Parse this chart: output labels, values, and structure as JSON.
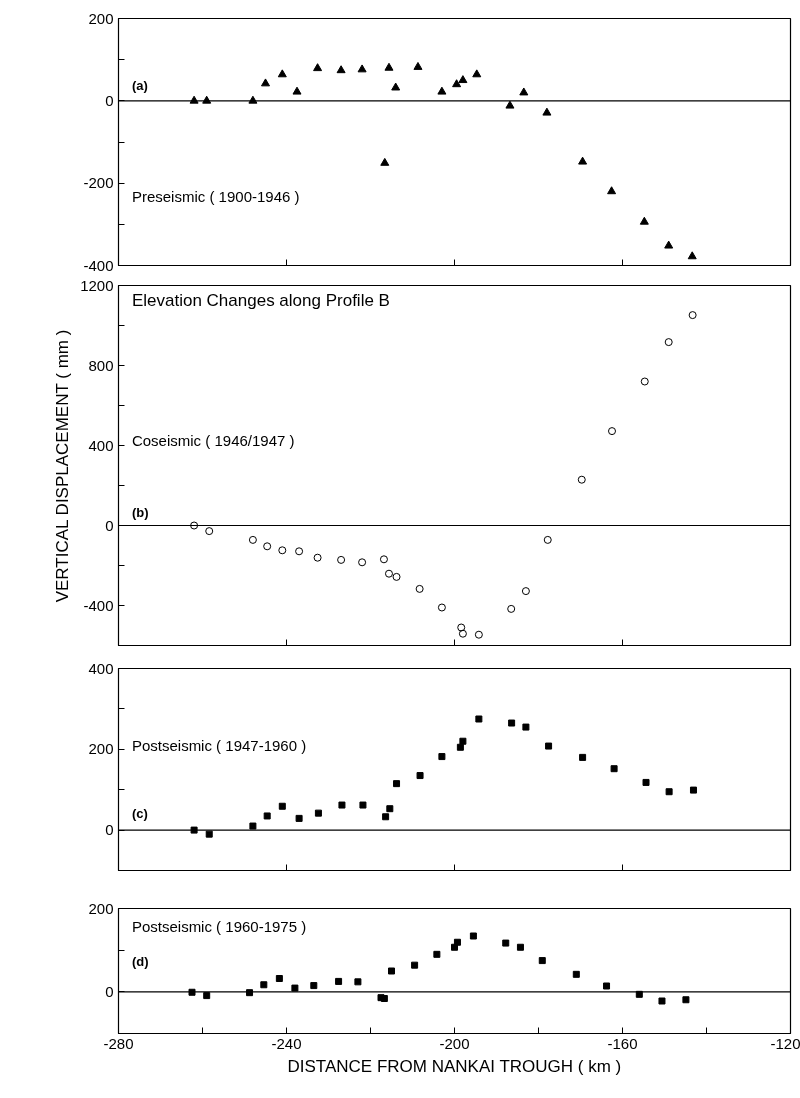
{
  "chart_data": [
    {
      "type": "scatter",
      "marker": "triangle",
      "annotations": [
        "(a)",
        "Preseismic ( 1900-1946 )"
      ],
      "x": [
        -262,
        -259,
        -248,
        -245,
        -241,
        -237.5,
        -232.6,
        -227,
        -222,
        -215.6,
        -216.6,
        -214,
        -208.7,
        -203,
        -199.5,
        -198,
        -194.7,
        -186.8,
        -183.5,
        -178,
        -169.5,
        -162.6,
        -154.8,
        -149,
        -143.4
      ],
      "series": [
        {
          "color": "#000000",
          "values": [
            0,
            0,
            0,
            42,
            64,
            22,
            79,
            74,
            76,
            80,
            -151,
            32,
            82,
            22,
            40,
            50,
            64,
            -12,
            20,
            -29,
            -148,
            -220,
            -294,
            -352,
            -378
          ]
        }
      ],
      "xlim": [
        -280,
        -120
      ],
      "xticks": [
        {
          "value": -280,
          "label": null
        },
        {
          "value": -240,
          "label": null
        },
        {
          "value": -200,
          "label": null
        },
        {
          "value": -160,
          "label": null
        },
        {
          "value": -120,
          "label": null
        }
      ],
      "ylim": [
        -400,
        200
      ],
      "yticks": [
        -400,
        {
          "value": -300,
          "label": null
        },
        -200,
        {
          "value": -100,
          "label": null
        },
        0,
        {
          "value": 100,
          "label": null
        },
        200
      ],
      "tick_labels": "y",
      "grid": false,
      "ref_lines": [
        {
          "axis": "y",
          "value": 0
        }
      ]
    },
    {
      "type": "scatter",
      "marker": "circle",
      "title": "Elevation Changes along Profile B",
      "ylabel": "VERTICAL DISPLACEMENT ( mm )",
      "annotations": [
        "Coseismic ( 1946/1947 )",
        "(b)"
      ],
      "x": [
        -262,
        -258.4,
        -248,
        -244.6,
        -241,
        -237,
        -232.6,
        -227,
        -222,
        -216.8,
        -215.6,
        -213.8,
        -208.3,
        -203,
        -198.4,
        -198,
        -194.2,
        -186.5,
        -183,
        -177.8,
        -169.7,
        -162.5,
        -154.7,
        -149,
        -143.3
      ],
      "series": [
        {
          "color": "#000000",
          "values": [
            0,
            -28,
            -72,
            -104,
            -124,
            -129,
            -161,
            -172,
            -184,
            -169,
            -241,
            -257,
            -317,
            -410,
            -510,
            -541,
            -546,
            -417,
            -328,
            -72,
            229,
            472,
            720,
            917,
            1052
          ]
        }
      ],
      "xlim": [
        -280,
        -120
      ],
      "xticks": [
        {
          "value": -280,
          "label": null
        },
        {
          "value": -240,
          "label": null
        },
        {
          "value": -200,
          "label": null
        },
        {
          "value": -160,
          "label": null
        },
        {
          "value": -120,
          "label": null
        }
      ],
      "ylim": [
        -600,
        1200
      ],
      "yticks": [
        {
          "value": -600,
          "label": null
        },
        -400,
        {
          "value": -200,
          "label": null
        },
        0,
        {
          "value": 200,
          "label": null
        },
        400,
        {
          "value": 600,
          "label": null
        },
        800,
        {
          "value": 1000,
          "label": null
        },
        1200
      ],
      "tick_labels": "y",
      "grid": false,
      "ref_lines": [
        {
          "axis": "y",
          "value": 0
        }
      ]
    },
    {
      "type": "scatter",
      "marker": "square",
      "annotations": [
        "Postseismic ( 1947-1960 )",
        "(c)"
      ],
      "x": [
        -262,
        -258.4,
        -248,
        -244.6,
        -241,
        -237,
        -232.4,
        -226.8,
        -221.8,
        -216.4,
        -215.4,
        -213.8,
        -208.2,
        -203,
        -198.6,
        -198,
        -194.2,
        -186.4,
        -183,
        -177.6,
        -169.5,
        -162,
        -154.4,
        -148.9,
        -143.1
      ],
      "series": [
        {
          "color": "#000000",
          "values": [
            0,
            -10,
            10,
            35,
            59,
            29,
            42,
            62,
            62,
            33,
            53,
            115,
            135,
            182,
            205,
            220,
            275,
            265,
            255,
            208,
            180,
            152,
            118,
            95,
            99
          ]
        }
      ],
      "xlim": [
        -280,
        -120
      ],
      "xticks": [
        {
          "value": -280,
          "label": null
        },
        {
          "value": -240,
          "label": null
        },
        {
          "value": -200,
          "label": null
        },
        {
          "value": -160,
          "label": null
        },
        {
          "value": -120,
          "label": null
        }
      ],
      "ylim": [
        -100,
        400
      ],
      "yticks": [
        {
          "value": -100,
          "label": null
        },
        0,
        {
          "value": 100,
          "label": null
        },
        200,
        {
          "value": 300,
          "label": null
        },
        400
      ],
      "tick_labels": "y",
      "grid": false,
      "ref_lines": [
        {
          "axis": "y",
          "value": 0
        }
      ]
    },
    {
      "type": "scatter",
      "marker": "square",
      "xlabel": "DISTANCE FROM NANKAI TROUGH ( km )",
      "annotations": [
        "Postseismic ( 1960-1975 )",
        "(d)"
      ],
      "x": [
        -262.5,
        -259,
        -248.8,
        -245.4,
        -241.7,
        -238,
        -233.5,
        -227.6,
        -223,
        -217.5,
        -216.7,
        -215,
        -209.5,
        -204.2,
        -200,
        -199.3,
        -195.5,
        -187.8,
        -184.3,
        -179.1,
        -171,
        -163.8,
        -156,
        -150.6,
        -144.9
      ],
      "series": [
        {
          "color": "#000000",
          "values": [
            -1,
            -9,
            -2,
            17,
            32,
            9,
            15,
            25,
            24,
            -14,
            -16,
            50,
            64,
            90,
            107,
            119,
            134,
            117,
            107,
            75,
            42,
            14,
            -6,
            -22,
            -19
          ]
        }
      ],
      "xlim": [
        -280,
        -120
      ],
      "xticks": [
        -280,
        {
          "value": -260,
          "label": null
        },
        -240,
        {
          "value": -220,
          "label": null
        },
        -200,
        {
          "value": -180,
          "label": null
        },
        -160,
        {
          "value": -140,
          "label": null
        },
        -120
      ],
      "ylim": [
        -100,
        200
      ],
      "yticks": [
        {
          "value": -100,
          "label": null
        },
        0,
        {
          "value": 100,
          "label": null
        },
        200
      ],
      "grid": false,
      "ref_lines": [
        {
          "axis": "y",
          "value": 0
        }
      ]
    }
  ]
}
